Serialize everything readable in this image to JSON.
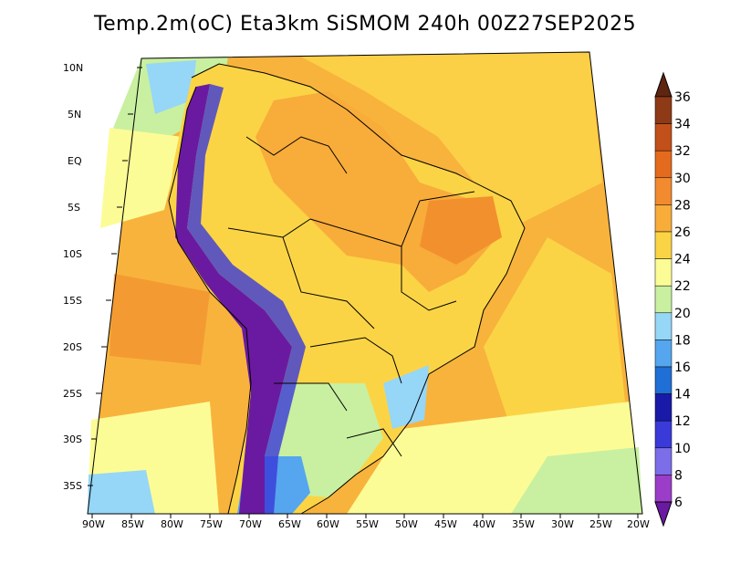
{
  "title": "Temp.2m(oC) Eta3km SiSMOM 240h 00Z27SEP2025",
  "lat_labels": [
    "10N",
    "5N",
    "EQ",
    "5S",
    "10S",
    "15S",
    "20S",
    "25S",
    "30S",
    "35S"
  ],
  "lon_labels": [
    "90W",
    "85W",
    "80W",
    "75W",
    "70W",
    "65W",
    "60W",
    "55W",
    "50W",
    "45W",
    "40W",
    "35W",
    "30W",
    "25W",
    "20W"
  ],
  "colorbar": {
    "labels": [
      "6",
      "8",
      "10",
      "12",
      "14",
      "16",
      "18",
      "20",
      "22",
      "24",
      "26",
      "28",
      "30",
      "32",
      "34",
      "36"
    ],
    "colors": [
      "#6a1aa0",
      "#9b3dc8",
      "#7b6ee8",
      "#3a3ad8",
      "#1a1aa8",
      "#1f6fd6",
      "#55a6ee",
      "#96d6f7",
      "#c8f0a0",
      "#fcfc96",
      "#fbd446",
      "#f8ac3a",
      "#f28a30",
      "#e46a1e",
      "#c2501a",
      "#8e3a16",
      "#5e2510"
    ]
  },
  "colors": {
    "ocean_warm": "#f8b33c",
    "ocean_mid": "#fbd046",
    "land_base": "#fbd446",
    "hot": "#f2902e",
    "andes_cold": "#6a1aa0",
    "south_cool": "#c8f0a0",
    "patagonia": "#55a6ee"
  }
}
